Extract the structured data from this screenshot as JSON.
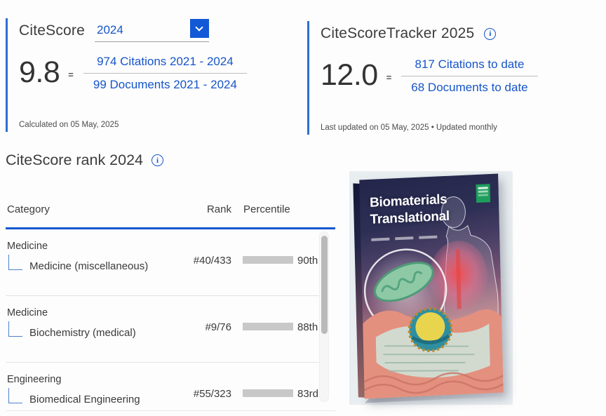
{
  "colors": {
    "accent_blue": "#1159d6",
    "link_blue": "#1655c9",
    "rule_blue": "#1457d0",
    "bar_rest_gray": "#c8c8c8"
  },
  "citescore": {
    "title": "CiteScore",
    "year_selected": "2024",
    "score": "9.8",
    "equals": "=",
    "numerator": "974 Citations 2021 - 2024",
    "denominator": "99 Documents 2021 - 2024",
    "footnote": "Calculated on 05 May, 2025"
  },
  "tracker": {
    "title": "CiteScoreTracker 2025",
    "score": "12.0",
    "equals": "=",
    "numerator": "817 Citations to date",
    "denominator": "68 Documents to date",
    "footnote": "Last updated on 05 May, 2025 • Updated monthly"
  },
  "rank": {
    "title": "CiteScore rank 2024",
    "columns": {
      "category": "Category",
      "rank": "Rank",
      "percentile": "Percentile"
    },
    "rows": [
      {
        "parent": "Medicine",
        "subcategory": "Medicine (miscellaneous)",
        "rank": "#40/433",
        "percentile": "90th",
        "percent": 90
      },
      {
        "parent": "Medicine",
        "subcategory": "Biochemistry (medical)",
        "rank": "#9/76",
        "percentile": "88th",
        "percent": 88
      },
      {
        "parent": "Engineering",
        "subcategory": "Biomedical Engineering",
        "rank": "#55/323",
        "percentile": "83rd",
        "percent": 83
      }
    ]
  },
  "cover": {
    "title_line1": "Biomaterials",
    "title_line2": "Translational"
  }
}
